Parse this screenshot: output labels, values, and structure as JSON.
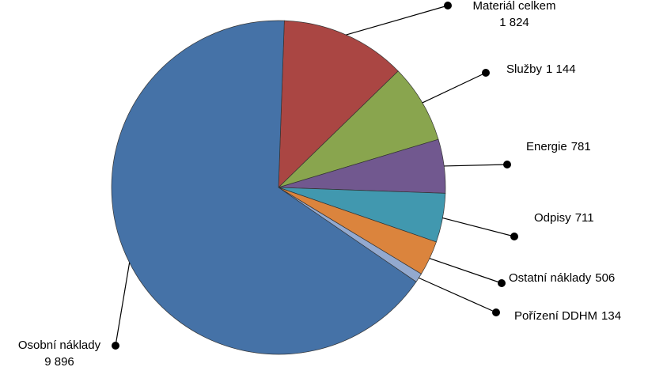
{
  "chart_data": {
    "type": "pie",
    "categories": [
      "Materiál celkem",
      "Služby",
      "Energie",
      "Odpisy",
      "Ostatní náklady",
      "Pořízení DDHM",
      "Osobní náklady"
    ],
    "values": [
      1824,
      1144,
      781,
      711,
      506,
      134,
      9896
    ],
    "value_labels": [
      "1 824",
      "1 144",
      "781",
      "711",
      "506",
      "134",
      "9 896"
    ],
    "colors": [
      "#aa4643",
      "#89a54e",
      "#71588f",
      "#4198af",
      "#db843d",
      "#93a9cf",
      "#4572a7"
    ]
  }
}
